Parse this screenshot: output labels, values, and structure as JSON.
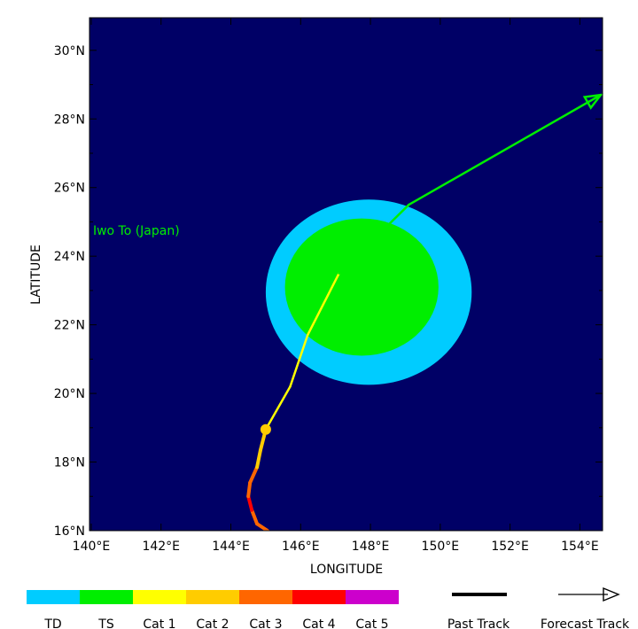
{
  "map": {
    "background_color": "#000066",
    "lon_range": [
      139.95,
      154.65
    ],
    "lat_range": [
      16.0,
      30.95
    ],
    "x_axis_title": "LONGITUDE",
    "y_axis_title": "LATITUDE",
    "x_ticks": [
      {
        "lon": 140,
        "label": "140°E"
      },
      {
        "lon": 142,
        "label": "142°E"
      },
      {
        "lon": 144,
        "label": "144°E"
      },
      {
        "lon": 146,
        "label": "146°E"
      },
      {
        "lon": 148,
        "label": "148°E"
      },
      {
        "lon": 150,
        "label": "150°E"
      },
      {
        "lon": 152,
        "label": "152°E"
      },
      {
        "lon": 154,
        "label": "154°E"
      }
    ],
    "y_ticks": [
      {
        "lat": 16,
        "label": "16°N"
      },
      {
        "lat": 18,
        "label": "18°N"
      },
      {
        "lat": 20,
        "label": "20°N"
      },
      {
        "lat": 22,
        "label": "22°N"
      },
      {
        "lat": 24,
        "label": "24°N"
      },
      {
        "lat": 26,
        "label": "26°N"
      },
      {
        "lat": 28,
        "label": "28°N"
      },
      {
        "lat": 30,
        "label": "30°N"
      }
    ],
    "place_label": {
      "text": "Iwo To (Japan)",
      "lon": 140.05,
      "lat": 24.75,
      "color": "#00ee00"
    },
    "wind_swaths": [
      {
        "category": "TD",
        "color": "#00ccff",
        "center": [
          147.95,
          22.95
        ],
        "radius_lon": 2.95,
        "radius_lat": 2.7
      },
      {
        "category": "TS",
        "color": "#00ee00",
        "center": [
          147.75,
          23.1
        ],
        "radius_lon": 2.2,
        "radius_lat": 2.0
      }
    ],
    "past_track": [
      {
        "lon": 145.05,
        "lat": 16.0,
        "color": "#ff6600"
      },
      {
        "lon": 144.75,
        "lat": 16.2,
        "color": "#ff6600"
      },
      {
        "lon": 144.6,
        "lat": 16.6,
        "color": "#ff6600"
      },
      {
        "lon": 144.5,
        "lat": 17.0,
        "color": "#ff0000"
      },
      {
        "lon": 144.55,
        "lat": 17.4,
        "color": "#ff6600"
      },
      {
        "lon": 144.75,
        "lat": 17.85,
        "color": "#ff6600"
      },
      {
        "lon": 144.85,
        "lat": 18.35,
        "color": "#ffcc00"
      },
      {
        "lon": 145.0,
        "lat": 18.95,
        "color": "#ffcc00"
      }
    ],
    "forecast_track": [
      {
        "lon": 145.0,
        "lat": 18.95,
        "color": "#ffff00"
      },
      {
        "lon": 145.7,
        "lat": 20.2,
        "color": "#ffff00"
      },
      {
        "lon": 146.2,
        "lat": 21.7,
        "color": "#ffff00"
      },
      {
        "lon": 147.1,
        "lat": 23.5,
        "color": "#ffff00"
      },
      {
        "lon": 149.1,
        "lat": 25.5,
        "color": "#00ee00"
      },
      {
        "lon": 154.6,
        "lat": 28.7,
        "color": "#00ee00"
      }
    ],
    "current_position": {
      "lon": 145.0,
      "lat": 18.95,
      "color": "#ffcc00"
    }
  },
  "legend": {
    "categories": [
      {
        "label": "TD",
        "color": "#00ccff"
      },
      {
        "label": "TS",
        "color": "#00ee00"
      },
      {
        "label": "Cat 1",
        "color": "#ffff00"
      },
      {
        "label": "Cat 2",
        "color": "#ffcc00"
      },
      {
        "label": "Cat 3",
        "color": "#ff6600"
      },
      {
        "label": "Cat 4",
        "color": "#ff0000"
      },
      {
        "label": "Cat 5",
        "color": "#cc00cc"
      }
    ],
    "past_track_label": "Past Track",
    "forecast_track_label": "Forecast Track"
  }
}
